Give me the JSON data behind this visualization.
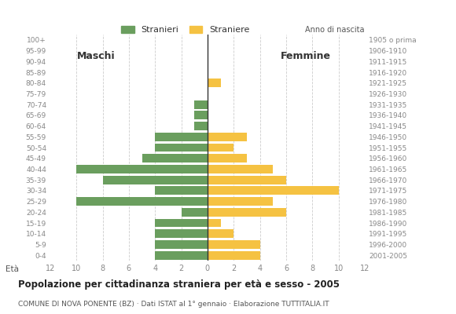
{
  "age_groups": [
    "100+",
    "95-99",
    "90-94",
    "85-89",
    "80-84",
    "75-79",
    "70-74",
    "65-69",
    "60-64",
    "55-59",
    "50-54",
    "45-49",
    "40-44",
    "35-39",
    "30-34",
    "25-29",
    "20-24",
    "15-19",
    "10-14",
    "5-9",
    "0-4"
  ],
  "birth_years": [
    "1905 o prima",
    "1906-1910",
    "1911-1915",
    "1916-1920",
    "1921-1925",
    "1926-1930",
    "1931-1935",
    "1936-1940",
    "1941-1945",
    "1946-1950",
    "1951-1955",
    "1956-1960",
    "1961-1965",
    "1966-1970",
    "1971-1975",
    "1976-1980",
    "1981-1985",
    "1986-1990",
    "1991-1995",
    "1996-2000",
    "2001-2005"
  ],
  "males": [
    0,
    0,
    0,
    0,
    0,
    0,
    1,
    1,
    1,
    4,
    4,
    5,
    10,
    8,
    4,
    10,
    2,
    4,
    4,
    4,
    4
  ],
  "females": [
    0,
    0,
    0,
    0,
    1,
    0,
    0,
    0,
    0,
    3,
    2,
    3,
    5,
    6,
    10,
    5,
    6,
    1,
    2,
    4,
    4
  ],
  "male_color": "#6a9e5e",
  "female_color": "#f5c242",
  "title": "Popolazione per cittadinanza straniera per età e sesso - 2005",
  "subtitle": "COMUNE DI NOVA PONENTE (BZ) · Dati ISTAT al 1° gennaio · Elaborazione TUTTITALIA.IT",
  "legend_male": "Stranieri",
  "legend_female": "Straniere",
  "xlim": 12,
  "ylabel_left": "Età",
  "ylabel_right": "Anno di nascita",
  "xlabel_male": "Maschi",
  "xlabel_female": "Femmine",
  "bg_color": "#ffffff",
  "grid_color": "#cccccc",
  "tick_label_color": "#888888"
}
